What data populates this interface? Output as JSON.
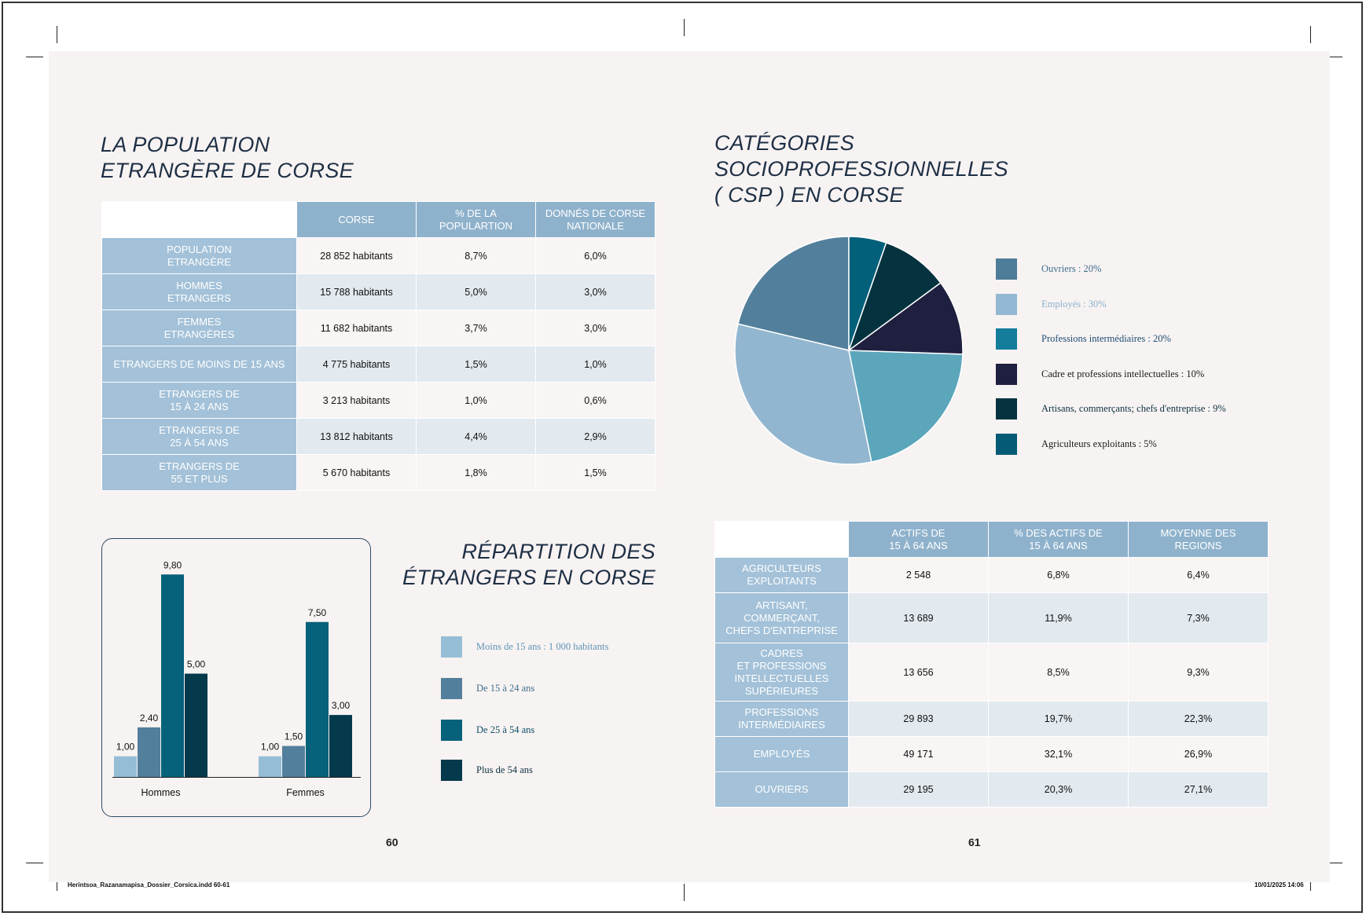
{
  "left_page": {
    "title": [
      "LA POPULATION",
      "ETRANGÈRE DE CORSE"
    ],
    "table": {
      "headers": [
        "CORSE",
        "% DE LA POPULARTION",
        "DONNÉS DE CORSE NATIONALE"
      ],
      "header_lines": [
        [
          "CORSE"
        ],
        [
          "% DE LA",
          "POPULARTION"
        ],
        [
          "DONNÉS DE CORSE",
          "NATIONALE"
        ]
      ],
      "rows": [
        {
          "label": [
            "POPULATION",
            "ETRANGÈRE"
          ],
          "values": [
            "28 852 habitants",
            "8,7%",
            "6,0%"
          ]
        },
        {
          "label": [
            "HOMMES",
            "ETRANGERS"
          ],
          "values": [
            "15 788 habitants",
            "5,0%",
            "3,0%"
          ]
        },
        {
          "label": [
            "FEMMES",
            "ETRANGÈRES"
          ],
          "values": [
            "11 682 habitants",
            "3,7%",
            "3,0%"
          ]
        },
        {
          "label": [
            "ETRANGERS DE MOINS DE 15 ANS"
          ],
          "values": [
            "4 775 habitants",
            "1,5%",
            "1,0%"
          ]
        },
        {
          "label": [
            "ETRANGERS DE",
            "15 À 24 ANS"
          ],
          "values": [
            "3 213 habitants",
            "1,0%",
            "0,6%"
          ]
        },
        {
          "label": [
            "ETRANGERS DE",
            "25 À 54 ANS"
          ],
          "values": [
            "13 812 habitants",
            "4,4%",
            "2,9%"
          ]
        },
        {
          "label": [
            "ETRANGERS DE",
            "55 ET PLUS"
          ],
          "values": [
            "5 670 habitants",
            "1,8%",
            "1,5%"
          ]
        }
      ]
    },
    "bar_section_title": [
      "RÉPARTITION DES",
      "ÉTRANGERS EN CORSE"
    ],
    "page_number": "60"
  },
  "chart_data": [
    {
      "type": "bar",
      "categories": [
        "Hommes",
        "Femmes"
      ],
      "series": [
        {
          "name": "Moins de 15 ans : 1 000 habitants",
          "values": [
            1.0,
            1.0
          ],
          "color": "#96bdd6"
        },
        {
          "name": "De 15 à 24 ans",
          "values": [
            2.4,
            1.5
          ],
          "color": "#527f9b"
        },
        {
          "name": "De 25 à 54 ans",
          "values": [
            9.8,
            7.5
          ],
          "color": "#06617a"
        },
        {
          "name": "Plus de 54 ans",
          "values": [
            5.0,
            3.0
          ],
          "color": "#043a4b"
        }
      ],
      "data_labels": [
        [
          "1,00",
          "2,40",
          "9,80",
          "5,00"
        ],
        [
          "1,00",
          "1,50",
          "7,50",
          "3,00"
        ]
      ],
      "ylim": [
        0,
        10
      ],
      "grid": false,
      "legend_position": "right"
    },
    {
      "type": "pie",
      "title": [
        "CATÉGORIES",
        "SOCIOPROFESSIONNELLES",
        "( CSP ) EN CORSE"
      ],
      "slices": [
        {
          "label": "Ouvriers : 20%",
          "value": 20,
          "color": "#527f9b",
          "text_color": "#3e6d8c"
        },
        {
          "label": "Employés : 30%",
          "value": 30,
          "color": "#92b6cf",
          "text_color": "#8bb1cd"
        },
        {
          "label": "Professions intermédiaires : 20%",
          "value": 20,
          "color": "#5ba6bb",
          "text_color": "#1d4d74"
        },
        {
          "label": "Cadre et professions intellectuelles : 10%",
          "value": 10,
          "color": "#1f1f40",
          "text_color": "#1a1a1a"
        },
        {
          "label": "Artisans, commerçants; chefs d'entreprise : 9%",
          "value": 9,
          "color": "#04323f",
          "text_color": "#0c3142"
        },
        {
          "label": "Agriculteurs exploitants : 5%",
          "value": 5,
          "color": "#03607a",
          "text_color": "#1a1a1a"
        }
      ],
      "legend_swatch_colors": [
        "#4e7d99",
        "#93b8d3",
        "#137d9b",
        "#1f1f40",
        "#04333f",
        "#045b76"
      ]
    }
  ],
  "right_page": {
    "table": {
      "header_lines": [
        [
          "ACTIFS DE",
          "15 À 64 ANS"
        ],
        [
          "% DES ACTIFS DE",
          "15 À 64 ANS"
        ],
        [
          "MOYENNE DES",
          "REGIONS"
        ]
      ],
      "rows": [
        {
          "label": [
            "AGRICULTEURS",
            "EXPLOITANTS"
          ],
          "values": [
            "2 548",
            "6,8%",
            "6,4%"
          ]
        },
        {
          "label": [
            "ARTISANT,",
            "COMMERÇANT,",
            "CHEFS D'ENTREPRISE"
          ],
          "values": [
            "13 689",
            "11,9%",
            "7,3%"
          ]
        },
        {
          "label": [
            "CADRES",
            "ET PROFESSIONS",
            "INTELLECTUELLES",
            "SUPÉRIEURES"
          ],
          "values": [
            "13 656",
            "8,5%",
            "9,3%"
          ]
        },
        {
          "label": [
            "PROFESSIONS",
            "INTERMÉDIAIRES"
          ],
          "values": [
            "29 893",
            "19,7%",
            "22,3%"
          ]
        },
        {
          "label": [
            "EMPLOYÉS"
          ],
          "values": [
            "49 171",
            "32,1%",
            "26,9%"
          ]
        },
        {
          "label": [
            "OUVRIERS"
          ],
          "values": [
            "29 195",
            "20,3%",
            "27,1%"
          ]
        }
      ]
    },
    "page_number": "61"
  },
  "slug": {
    "file": "Herintsoa_Razanamapisa_Dossier_Corsica.indd   60-61",
    "date": "10/01/2025   14:06"
  }
}
